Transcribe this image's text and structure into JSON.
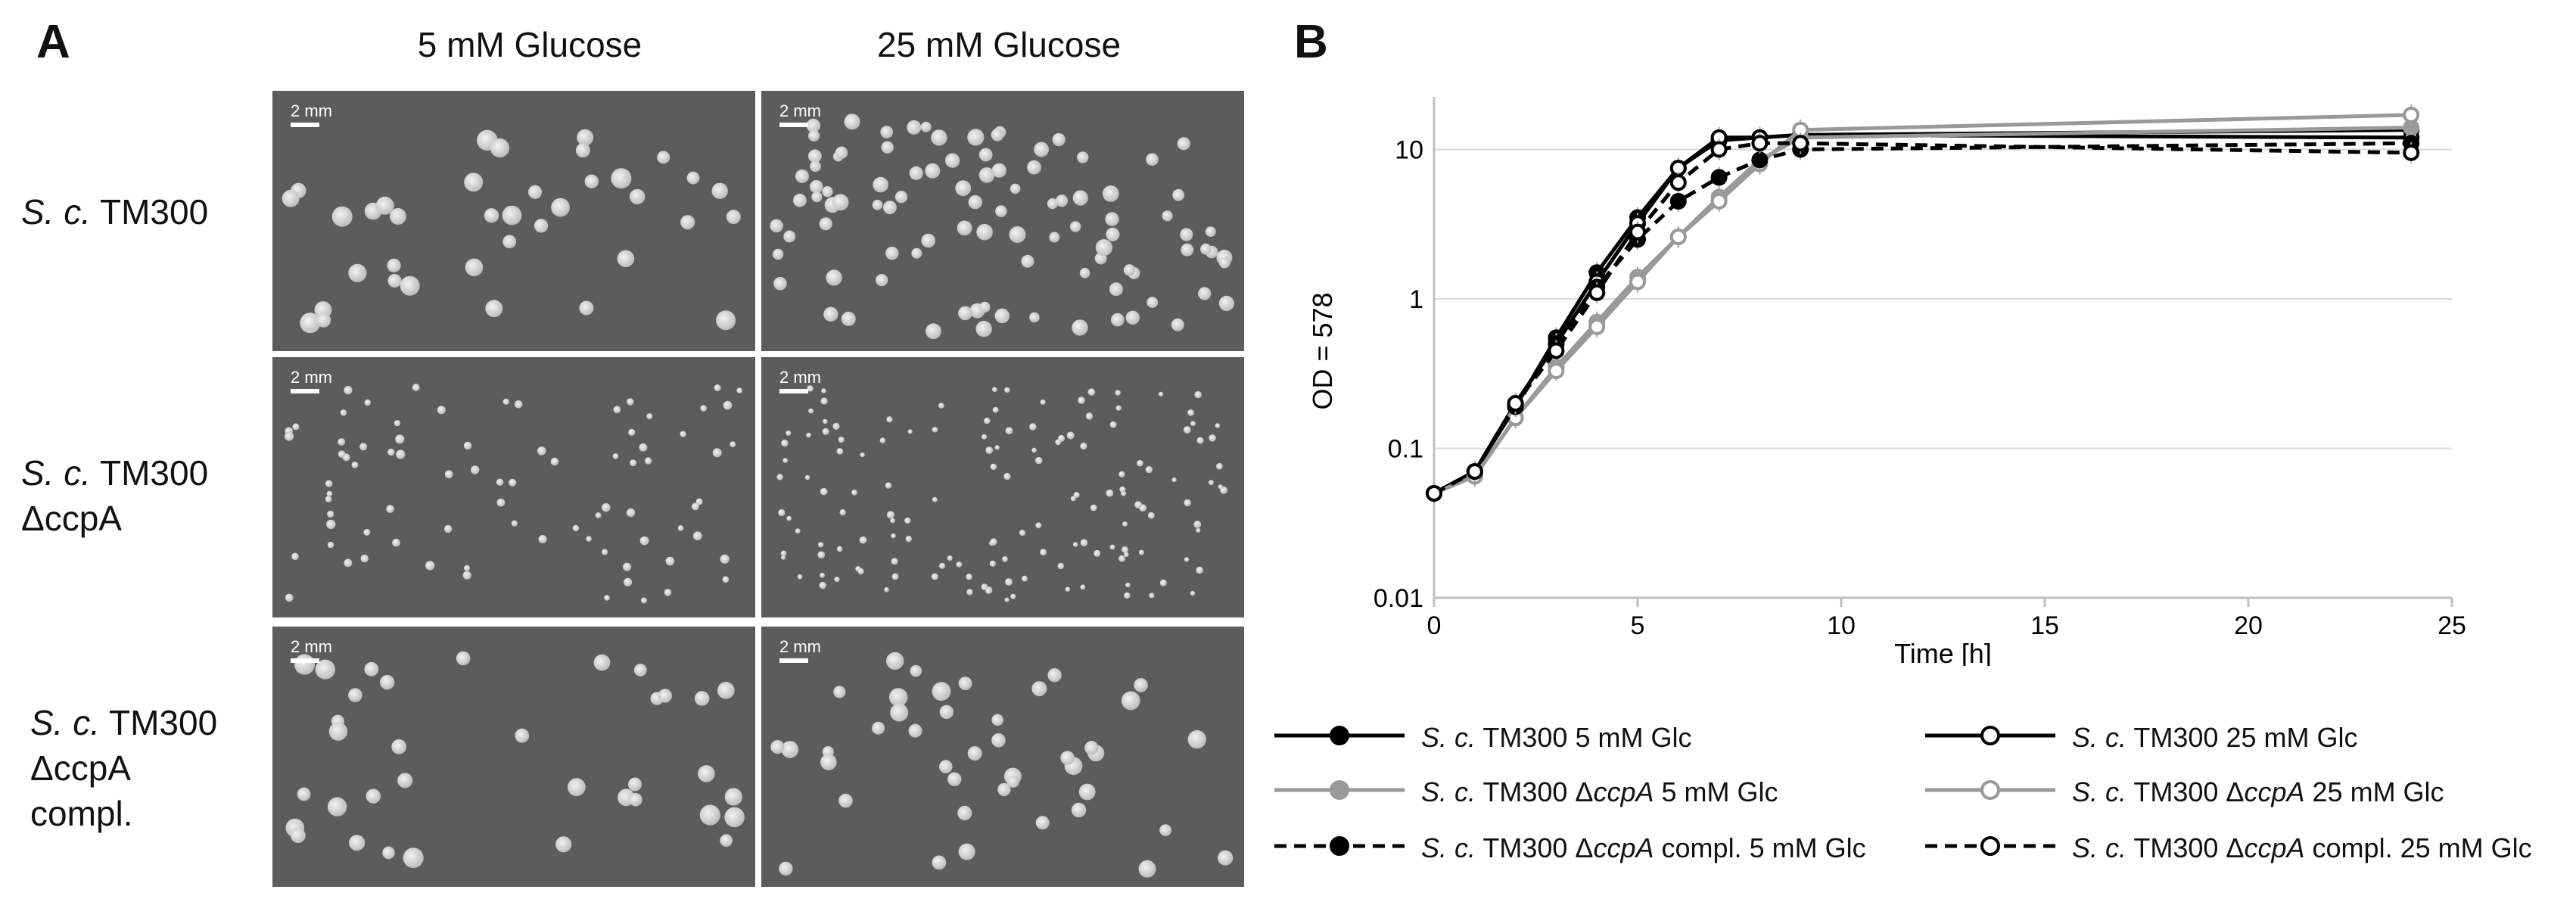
{
  "panel_a": {
    "letter": "A",
    "columns": [
      "5 mM Glucose",
      "25 mM Glucose"
    ],
    "rows": [
      {
        "species": "S. c.",
        "line1": " TM300",
        "line2": "",
        "line3": ""
      },
      {
        "species": "S. c.",
        "line1": " TM300",
        "line2": "ΔccpA",
        "line3": ""
      },
      {
        "species": "S. c.",
        "line1": " TM300",
        "line2": "ΔccpA",
        "line3": "compl."
      }
    ],
    "scale_label": "2 mm"
  },
  "panel_b": {
    "letter": "B"
  },
  "chart_data": {
    "type": "line",
    "xlabel": "Time [h]",
    "ylabel": "OD = 578",
    "xlim": [
      0,
      25
    ],
    "ylim": [
      0.01,
      20
    ],
    "yscale": "log",
    "x_ticks": [
      0,
      5,
      10,
      15,
      20,
      25
    ],
    "y_ticks": [
      0.01,
      0.1,
      1,
      10
    ],
    "y_tick_labels": [
      "0.01",
      "0.1",
      "1",
      "10"
    ],
    "grid": "horizontal",
    "legend_position": "bottom",
    "series": [
      {
        "name": "S. c. TM300 5 mM Glc",
        "color": "#000000",
        "dashed": false,
        "marker": "filled",
        "x": [
          0,
          1,
          2,
          3,
          4,
          5,
          6,
          7,
          8,
          9,
          24
        ],
        "y": [
          0.05,
          0.07,
          0.19,
          0.55,
          1.5,
          3.5,
          7.5,
          11.5,
          12,
          12.5,
          13.5
        ]
      },
      {
        "name": "S. c. TM300 25 mM Glc",
        "color": "#000000",
        "dashed": false,
        "marker": "open",
        "x": [
          0,
          1,
          2,
          3,
          4,
          5,
          6,
          7,
          8,
          9,
          24
        ],
        "y": [
          0.05,
          0.07,
          0.2,
          0.5,
          1.3,
          3.2,
          7.5,
          12,
          12,
          12.5,
          12
        ]
      },
      {
        "name": "S. c. TM300 ΔccpA 5 mM Glc",
        "color": "#999999",
        "dashed": false,
        "marker": "filled",
        "x": [
          0,
          1,
          2,
          3,
          4,
          5,
          6,
          7,
          8,
          9,
          24
        ],
        "y": [
          0.05,
          0.065,
          0.16,
          0.35,
          0.7,
          1.4,
          2.6,
          4.8,
          8.5,
          12,
          14
        ]
      },
      {
        "name": "S. c. TM300 ΔccpA 25 mM Glc",
        "color": "#999999",
        "dashed": false,
        "marker": "open",
        "x": [
          0,
          1,
          2,
          3,
          4,
          5,
          6,
          7,
          8,
          9,
          24
        ],
        "y": [
          0.05,
          0.065,
          0.16,
          0.33,
          0.65,
          1.3,
          2.6,
          4.5,
          8,
          13.5,
          17
        ]
      },
      {
        "name": "S. c. TM300 ΔccpA compl. 5 mM Glc",
        "color": "#000000",
        "dashed": true,
        "marker": "filled",
        "x": [
          0,
          1,
          2,
          3,
          4,
          5,
          6,
          7,
          8,
          9,
          24
        ],
        "y": [
          0.05,
          0.07,
          0.19,
          0.5,
          1.2,
          2.5,
          4.5,
          6.5,
          8.5,
          10,
          11
        ]
      },
      {
        "name": "S. c. TM300 ΔccpA compl. 25 mM Glc",
        "color": "#000000",
        "dashed": true,
        "marker": "open",
        "x": [
          0,
          1,
          2,
          3,
          4,
          5,
          6,
          7,
          8,
          9,
          24
        ],
        "y": [
          0.05,
          0.07,
          0.2,
          0.45,
          1.1,
          2.8,
          6,
          10,
          11,
          11,
          9.5
        ]
      }
    ],
    "legend_entries": [
      {
        "prefix": "S. c.",
        "mid": " TM300 ",
        "mutant": "",
        "suffix": "5 mM Glc"
      },
      {
        "prefix": "S. c.",
        "mid": " TM300 ",
        "mutant": "",
        "suffix": "25 mM Glc"
      },
      {
        "prefix": "S. c.",
        "mid": " TM300 Δ",
        "mutant": "ccpA",
        "suffix": " 5 mM Glc"
      },
      {
        "prefix": "S. c.",
        "mid": " TM300 Δ",
        "mutant": "ccpA",
        "suffix": " 25 mM Glc"
      },
      {
        "prefix": "S. c.",
        "mid": " TM300 Δ",
        "mutant": "ccpA",
        "suffix": " compl. 5 mM Glc"
      },
      {
        "prefix": "S. c.",
        "mid": " TM300 Δ",
        "mutant": "ccpA",
        "suffix": " compl. 25 mM Glc"
      }
    ]
  }
}
